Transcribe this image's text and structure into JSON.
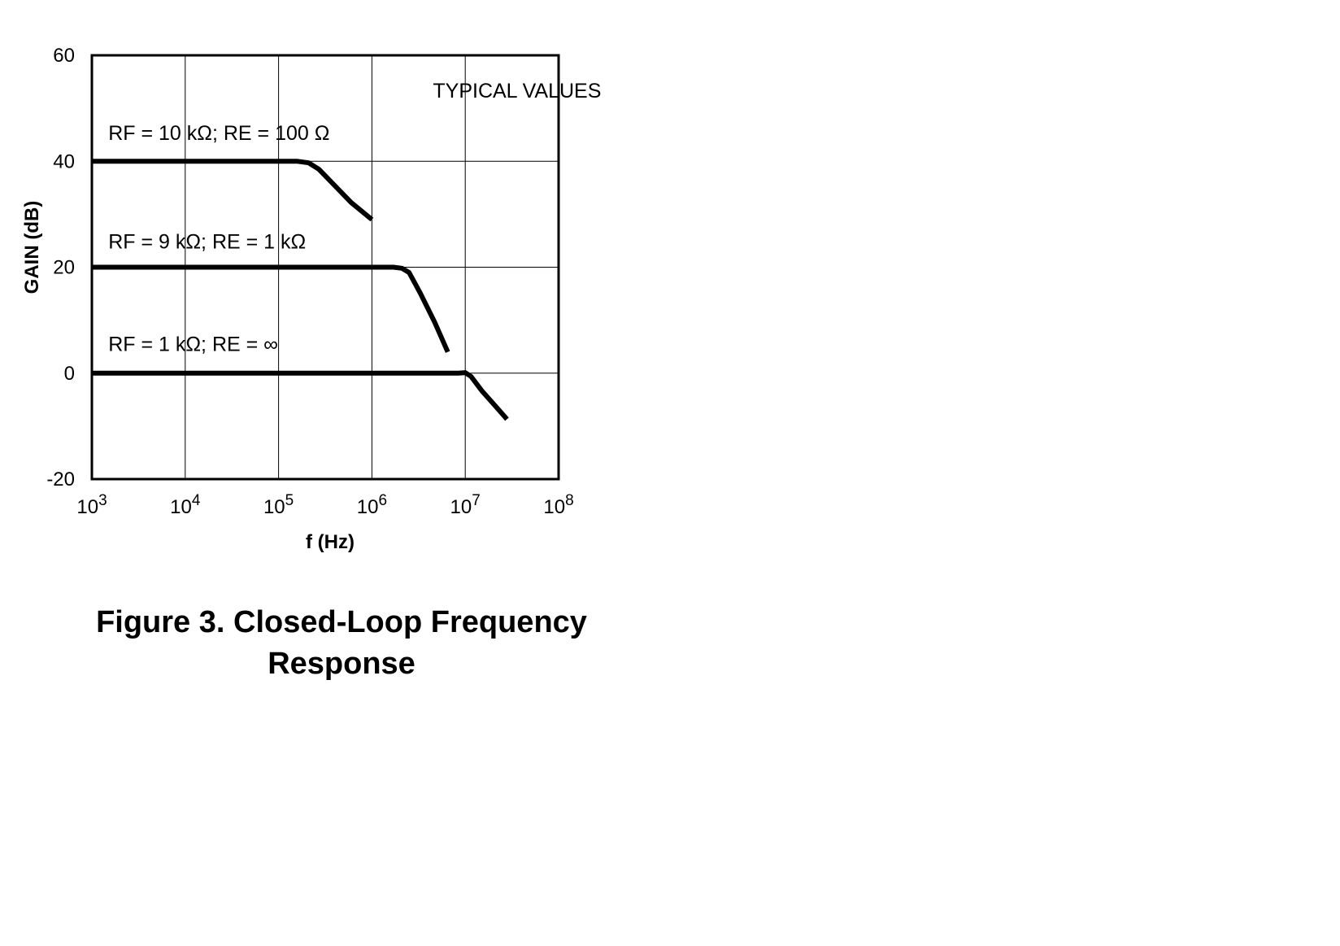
{
  "figure": {
    "caption_line1": "Figure 3. Closed-Loop Frequency",
    "caption_line2": "Response"
  },
  "chart_data": {
    "type": "line",
    "title": "",
    "xlabel": "f (Hz)",
    "ylabel": "GAIN (dB)",
    "x_scale": "log",
    "xlim": [
      1000,
      100000000
    ],
    "ylim": [
      -20,
      60
    ],
    "grid": true,
    "x_ticks": [
      {
        "value": 1000,
        "base": "10",
        "exp": "3"
      },
      {
        "value": 10000,
        "base": "10",
        "exp": "4"
      },
      {
        "value": 100000,
        "base": "10",
        "exp": "5"
      },
      {
        "value": 1000000,
        "base": "10",
        "exp": "6"
      },
      {
        "value": 10000000,
        "base": "10",
        "exp": "7"
      },
      {
        "value": 100000000,
        "base": "10",
        "exp": "8"
      }
    ],
    "y_ticks": [
      {
        "value": 60,
        "label": "60"
      },
      {
        "value": 40,
        "label": "40"
      },
      {
        "value": 20,
        "label": "20"
      },
      {
        "value": 0,
        "label": "0"
      },
      {
        "value": -20,
        "label": "-20"
      }
    ],
    "annotations": [
      {
        "text": "TYPICAL VALUES",
        "x": 4500000,
        "y": 52
      },
      {
        "text": "RF = 10 kΩ; RE = 100 Ω",
        "x": 1500,
        "y": 44
      },
      {
        "text": "RF = 9 kΩ; RE = 1 kΩ",
        "x": 1500,
        "y": 23.5
      },
      {
        "text": "RF = 1 kΩ; RE = ∞",
        "x": 1500,
        "y": 4.2
      }
    ],
    "series": [
      {
        "points": [
          [
            1000,
            40
          ],
          [
            160000,
            40
          ],
          [
            210000,
            39.7
          ],
          [
            270000,
            38.5
          ],
          [
            400000,
            35.4
          ],
          [
            600000,
            32.2
          ],
          [
            1000000,
            29
          ]
        ]
      },
      {
        "points": [
          [
            1000,
            20
          ],
          [
            1700000,
            20
          ],
          [
            2100000,
            19.8
          ],
          [
            2500000,
            19
          ],
          [
            3300000,
            15.1
          ],
          [
            4700000,
            9.6
          ],
          [
            6500000,
            4
          ]
        ]
      },
      {
        "points": [
          [
            1000,
            0
          ],
          [
            8500000,
            0
          ],
          [
            10000000,
            0.1
          ],
          [
            11500000,
            -0.6
          ],
          [
            15000000,
            -3.3
          ],
          [
            21000000,
            -6.2
          ],
          [
            28000000,
            -8.7
          ]
        ]
      }
    ]
  }
}
